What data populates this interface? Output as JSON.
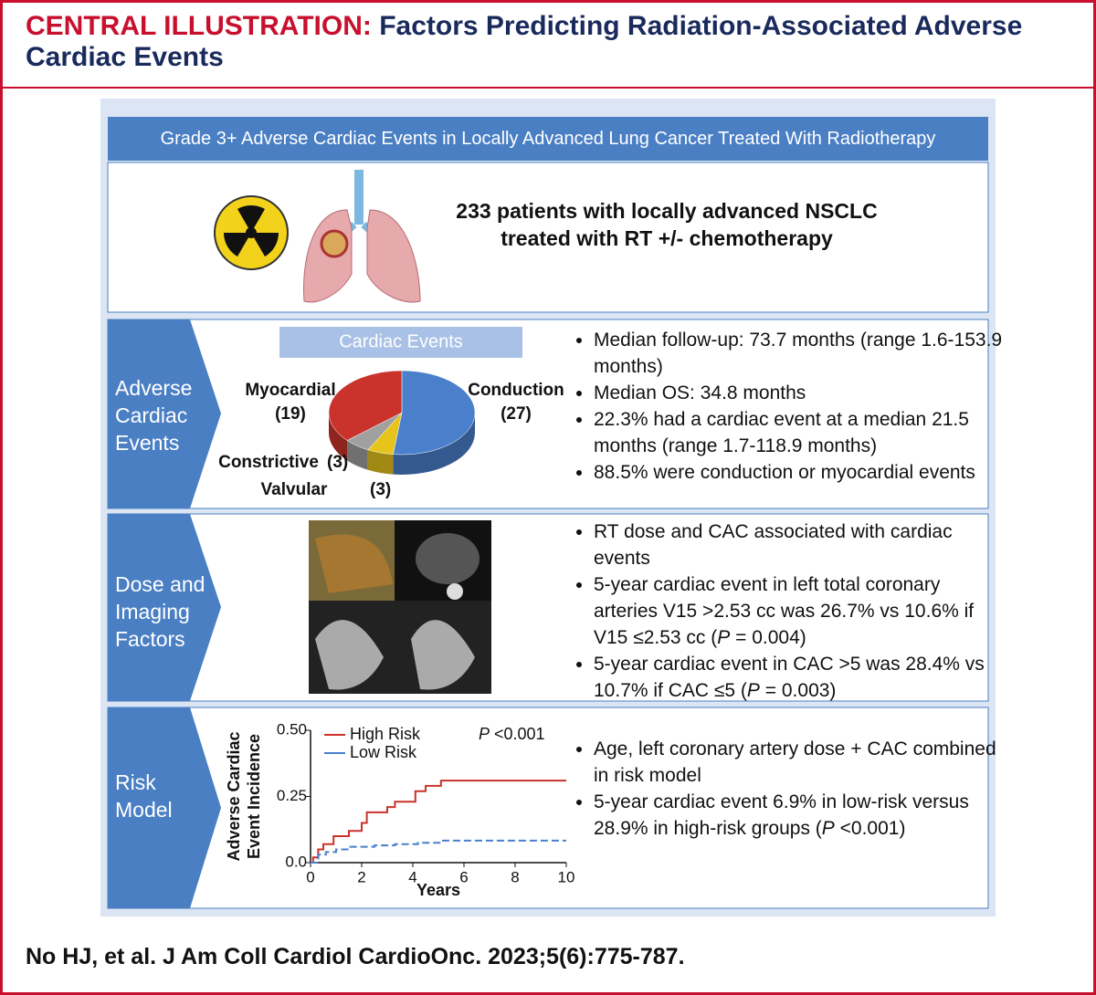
{
  "header": {
    "label": "CENTRAL ILLUSTRATION:",
    "title_lines": [
      "Factors Predicting Radiation-Associated Adverse",
      "Cardiac Events"
    ]
  },
  "banner": "Grade 3+ Adverse Cardiac Events in Locally Advanced Lung Cancer Treated With Radiotherapy",
  "cohort": [
    "233 patients with locally advanced NSCLC",
    "treated with RT +/- chemotherapy"
  ],
  "sections": [
    {
      "label": [
        "Adverse",
        "Cardiac",
        "Events"
      ],
      "bullets": [
        [
          {
            "text": "Median follow-up: 73.7 months (range 1.6-153.9 months)"
          }
        ],
        [
          {
            "text": "Median OS: 34.8 months"
          }
        ],
        [
          {
            "text": "22.3% had a cardiac event at a median 21.5 months (range 1.7-118.9 months)"
          }
        ],
        [
          {
            "text": "88.5% were conduction or myocardial events"
          }
        ]
      ]
    },
    {
      "label": [
        "Dose and",
        "Imaging",
        "Factors"
      ],
      "bullets": [
        [
          {
            "text": "RT dose and CAC associated with cardiac events"
          }
        ],
        [
          {
            "text": "5-year cardiac event in left total coronary arteries V15 >2.53 cc was 26.7% vs 10.6% if V15 ≤2.53 cc ("
          },
          {
            "text": "P",
            "italic": true
          },
          {
            "text": " = 0.004)"
          }
        ],
        [
          {
            "text": "5-year cardiac event in CAC >5 was 28.4% vs 10.7% if CAC ≤5  ("
          },
          {
            "text": "P",
            "italic": true
          },
          {
            "text": " = 0.003)"
          }
        ]
      ]
    },
    {
      "label": [
        "Risk",
        "Model"
      ],
      "bullets": [
        [
          {
            "text": "Age, left coronary artery dose + CAC combined in risk model"
          }
        ],
        [
          {
            "text": "5-year cardiac event 6.9% in low-risk versus 28.9% in high-risk groups ("
          },
          {
            "text": "P",
            "italic": true
          },
          {
            "text": " <0.001)"
          }
        ]
      ]
    }
  ],
  "pie": {
    "type": "pie",
    "title": "Cardiac Events",
    "categories": [
      "Conduction",
      "Valvular",
      "Constrictive",
      "Myocardial"
    ],
    "values": [
      27,
      3,
      3,
      19
    ],
    "value_labels": [
      "(27)",
      "(3)",
      "(3)",
      "(19)"
    ],
    "colors": [
      "#4a7fcb",
      "#e6c41c",
      "#a0a0a0",
      "#c9332b"
    ]
  },
  "km": {
    "type": "line",
    "step": true,
    "xlabel": "Years",
    "ylabel": [
      "Adverse Cardiac",
      "Event Incidence"
    ],
    "annotation": [
      {
        "text": "P",
        "italic": true
      },
      {
        "text": " <0.001"
      }
    ],
    "xlim": [
      0,
      10
    ],
    "ylim": [
      0,
      0.5
    ],
    "xticks": [
      0,
      2,
      4,
      6,
      8,
      10
    ],
    "yticks": [
      {
        "value": 0,
        "label": "0.0"
      },
      0.25,
      {
        "value": 0.5,
        "label": "0.50"
      }
    ],
    "series": [
      {
        "name": "High Risk",
        "color": "#c9332b",
        "dashed": false,
        "x": [
          0,
          0.1,
          0.3,
          0.5,
          0.9,
          1.5,
          2.0,
          2.2,
          3.0,
          3.3,
          4.1,
          4.5,
          5.1,
          10
        ],
        "values": [
          0,
          0.02,
          0.05,
          0.07,
          0.1,
          0.12,
          0.15,
          0.19,
          0.21,
          0.23,
          0.27,
          0.29,
          0.31,
          0.31
        ]
      },
      {
        "name": "Low Risk",
        "color": "#4a7fcb",
        "dashed": true,
        "x": [
          0,
          0.3,
          0.6,
          1.0,
          1.5,
          2.5,
          3.3,
          4.2,
          5.1,
          10
        ],
        "values": [
          0,
          0.03,
          0.04,
          0.05,
          0.06,
          0.065,
          0.07,
          0.075,
          0.083,
          0.083
        ]
      }
    ]
  },
  "citation": "No HJ, et al. J Am Coll Cardiol CardioOnc. 2023;5(6):775-787."
}
